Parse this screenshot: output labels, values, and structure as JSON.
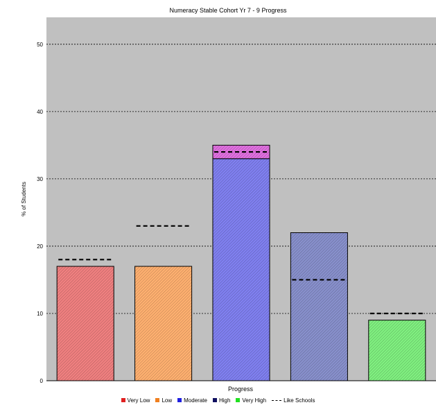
{
  "chart_data": {
    "type": "bar",
    "title": "Numeracy Stable Cohort Yr 7 - 9 Progress",
    "xlabel": "Progress",
    "ylabel": "% of Students",
    "ylim": [
      0,
      54
    ],
    "yticks": [
      0,
      10,
      20,
      30,
      40,
      50
    ],
    "grid": true,
    "legend_position": "bottom",
    "categories": [
      "Very Low",
      "Low",
      "Moderate",
      "High",
      "Very High"
    ],
    "series": [
      {
        "name": "Very Low",
        "color": "#f08080",
        "values": [
          17,
          null,
          null,
          null,
          null
        ]
      },
      {
        "name": "Low",
        "color": "#ffb070",
        "values": [
          null,
          17,
          null,
          null,
          null
        ]
      },
      {
        "name": "Moderate",
        "color": "#8080f0",
        "values": [
          null,
          null,
          33,
          null,
          null
        ]
      },
      {
        "name": "High",
        "color": "#8890cc",
        "values": [
          null,
          null,
          null,
          22,
          null
        ]
      },
      {
        "name": "Very High",
        "color": "#80f080",
        "values": [
          null,
          null,
          null,
          null,
          9
        ]
      }
    ],
    "overlay": {
      "category": "Moderate",
      "from": 33,
      "to": 35,
      "color": "#e070e0"
    },
    "like_schools": {
      "name": "Like Schools",
      "values": [
        18,
        23,
        34,
        15,
        10
      ]
    },
    "legend_colors": {
      "Very Low": "#e02020",
      "Low": "#f08020",
      "Moderate": "#2020e0",
      "High": "#101060",
      "Very High": "#20e020"
    }
  }
}
